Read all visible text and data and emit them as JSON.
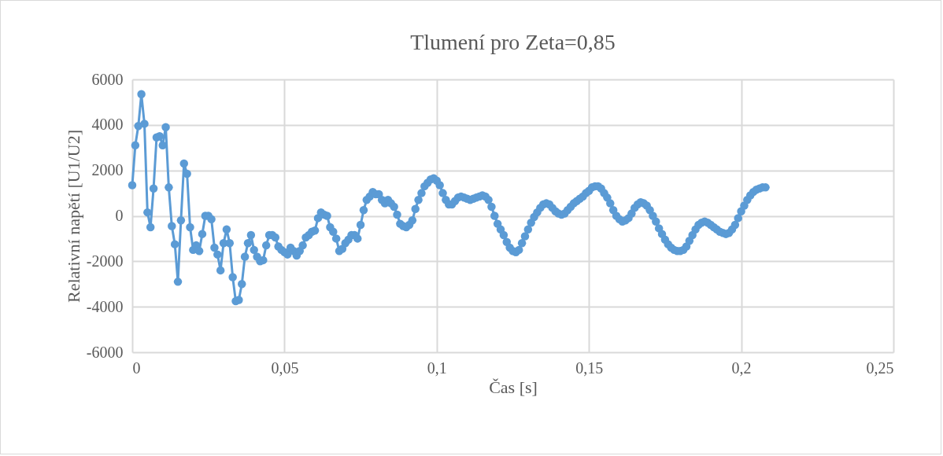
{
  "chart_data": {
    "type": "line",
    "title": "Tlumení pro Zeta=0,85",
    "xlabel": "Čas [s]",
    "ylabel": "Relativní napětí [U1/U2]",
    "x": [
      0,
      0.001,
      0.002,
      0.003,
      0.004,
      0.005,
      0.006,
      0.007,
      0.008,
      0.009,
      0.01,
      0.011,
      0.012,
      0.013,
      0.014,
      0.015,
      0.016,
      0.017,
      0.018,
      0.019,
      0.02,
      0.021,
      0.022,
      0.023,
      0.024,
      0.025,
      0.026,
      0.027,
      0.028,
      0.029,
      0.03,
      0.031,
      0.032,
      0.033,
      0.034,
      0.035,
      0.036,
      0.037,
      0.038,
      0.039,
      0.04,
      0.041,
      0.042,
      0.043,
      0.044,
      0.045,
      0.046,
      0.047,
      0.048,
      0.049,
      0.05,
      0.051,
      0.052,
      0.053,
      0.054,
      0.055,
      0.056,
      0.057,
      0.058,
      0.059,
      0.06,
      0.061,
      0.062,
      0.063,
      0.064,
      0.065,
      0.066,
      0.067,
      0.068,
      0.069,
      0.07,
      0.071,
      0.072,
      0.073,
      0.074,
      0.075,
      0.076,
      0.077,
      0.078,
      0.079,
      0.08,
      0.081,
      0.082,
      0.083,
      0.084,
      0.085,
      0.086,
      0.087,
      0.088,
      0.089,
      0.09,
      0.091,
      0.092,
      0.093,
      0.094,
      0.095,
      0.096,
      0.097,
      0.098,
      0.099,
      0.1,
      0.101,
      0.102,
      0.103,
      0.104,
      0.105,
      0.106,
      0.107,
      0.108,
      0.109,
      0.11,
      0.111,
      0.112,
      0.113,
      0.114,
      0.115,
      0.116,
      0.117,
      0.118,
      0.119,
      0.12,
      0.121,
      0.122,
      0.123,
      0.124,
      0.125,
      0.126,
      0.127,
      0.128,
      0.129,
      0.13,
      0.131,
      0.132,
      0.133,
      0.134,
      0.135,
      0.136,
      0.137,
      0.138,
      0.139,
      0.14,
      0.141,
      0.142,
      0.143,
      0.144,
      0.145,
      0.146,
      0.147,
      0.148,
      0.149,
      0.15,
      0.151,
      0.152,
      0.153,
      0.154,
      0.155,
      0.156,
      0.157,
      0.158,
      0.159,
      0.16,
      0.161,
      0.162,
      0.163,
      0.164,
      0.165,
      0.166,
      0.167,
      0.168,
      0.169,
      0.17,
      0.171,
      0.172,
      0.173,
      0.174,
      0.175,
      0.176,
      0.177,
      0.178,
      0.179,
      0.18,
      0.181,
      0.182,
      0.183,
      0.184,
      0.185,
      0.186,
      0.187,
      0.188,
      0.189,
      0.19,
      0.191,
      0.192,
      0.193,
      0.194,
      0.195,
      0.196,
      0.197,
      0.198,
      0.199,
      0.2,
      0.201,
      0.202,
      0.203,
      0.204,
      0.205,
      0.206,
      0.207,
      0.208
    ],
    "series": [
      {
        "color": "#5b9bd5",
        "values": [
          1350,
          3100,
          3950,
          5350,
          4050,
          150,
          -500,
          1200,
          3450,
          3500,
          3100,
          3900,
          1250,
          -450,
          -1250,
          -2900,
          -200,
          2300,
          1850,
          -500,
          -1500,
          -1300,
          -1550,
          -800,
          0,
          0,
          -150,
          -1400,
          -1700,
          -2400,
          -1200,
          -600,
          -1200,
          -2700,
          -3750,
          -3700,
          -3000,
          -1800,
          -1200,
          -850,
          -1500,
          -1800,
          -2000,
          -1950,
          -1300,
          -850,
          -850,
          -950,
          -1350,
          -1500,
          -1600,
          -1700,
          -1400,
          -1550,
          -1750,
          -1550,
          -1300,
          -950,
          -850,
          -700,
          -650,
          -100,
          150,
          50,
          0,
          -500,
          -700,
          -1000,
          -1550,
          -1450,
          -1200,
          -1050,
          -850,
          -850,
          -1000,
          -400,
          250,
          700,
          850,
          1050,
          950,
          950,
          700,
          550,
          700,
          550,
          400,
          50,
          -350,
          -450,
          -500,
          -400,
          -200,
          300,
          700,
          1000,
          1300,
          1450,
          1600,
          1650,
          1550,
          1350,
          1000,
          700,
          500,
          500,
          650,
          800,
          850,
          800,
          750,
          700,
          750,
          800,
          850,
          900,
          850,
          700,
          400,
          0,
          -350,
          -600,
          -850,
          -1150,
          -1400,
          -1550,
          -1600,
          -1500,
          -1200,
          -900,
          -600,
          -300,
          -50,
          150,
          350,
          500,
          550,
          500,
          350,
          200,
          100,
          50,
          100,
          250,
          400,
          550,
          650,
          750,
          850,
          1000,
          1100,
          1250,
          1300,
          1300,
          1200,
          1000,
          800,
          550,
          250,
          0,
          -150,
          -250,
          -200,
          -100,
          100,
          350,
          500,
          600,
          550,
          450,
          250,
          0,
          -250,
          -550,
          -800,
          -1050,
          -1250,
          -1400,
          -1500,
          -1550,
          -1550,
          -1500,
          -1350,
          -1100,
          -850,
          -600,
          -400,
          -300,
          -250,
          -300,
          -400,
          -500,
          -600,
          -700,
          -750,
          -800,
          -750,
          -600,
          -400,
          -100,
          200,
          450,
          700,
          900,
          1050,
          1150,
          1200,
          1250,
          1250
        ]
      }
    ],
    "xlim": [
      0,
      0.25
    ],
    "xticks": [
      0,
      {
        "value": 0.05,
        "label": "0,05"
      },
      {
        "value": 0.1,
        "label": "0,1"
      },
      {
        "value": 0.15,
        "label": "0,15"
      },
      {
        "value": 0.2,
        "label": "0,2"
      },
      {
        "value": 0.25,
        "label": "0,25"
      }
    ],
    "ylim": [
      -6000,
      6000
    ],
    "yticks": [
      -6000,
      -4000,
      -2000,
      0,
      2000,
      4000,
      6000
    ],
    "grid": true,
    "marker": "circle",
    "line_style": "solid"
  }
}
